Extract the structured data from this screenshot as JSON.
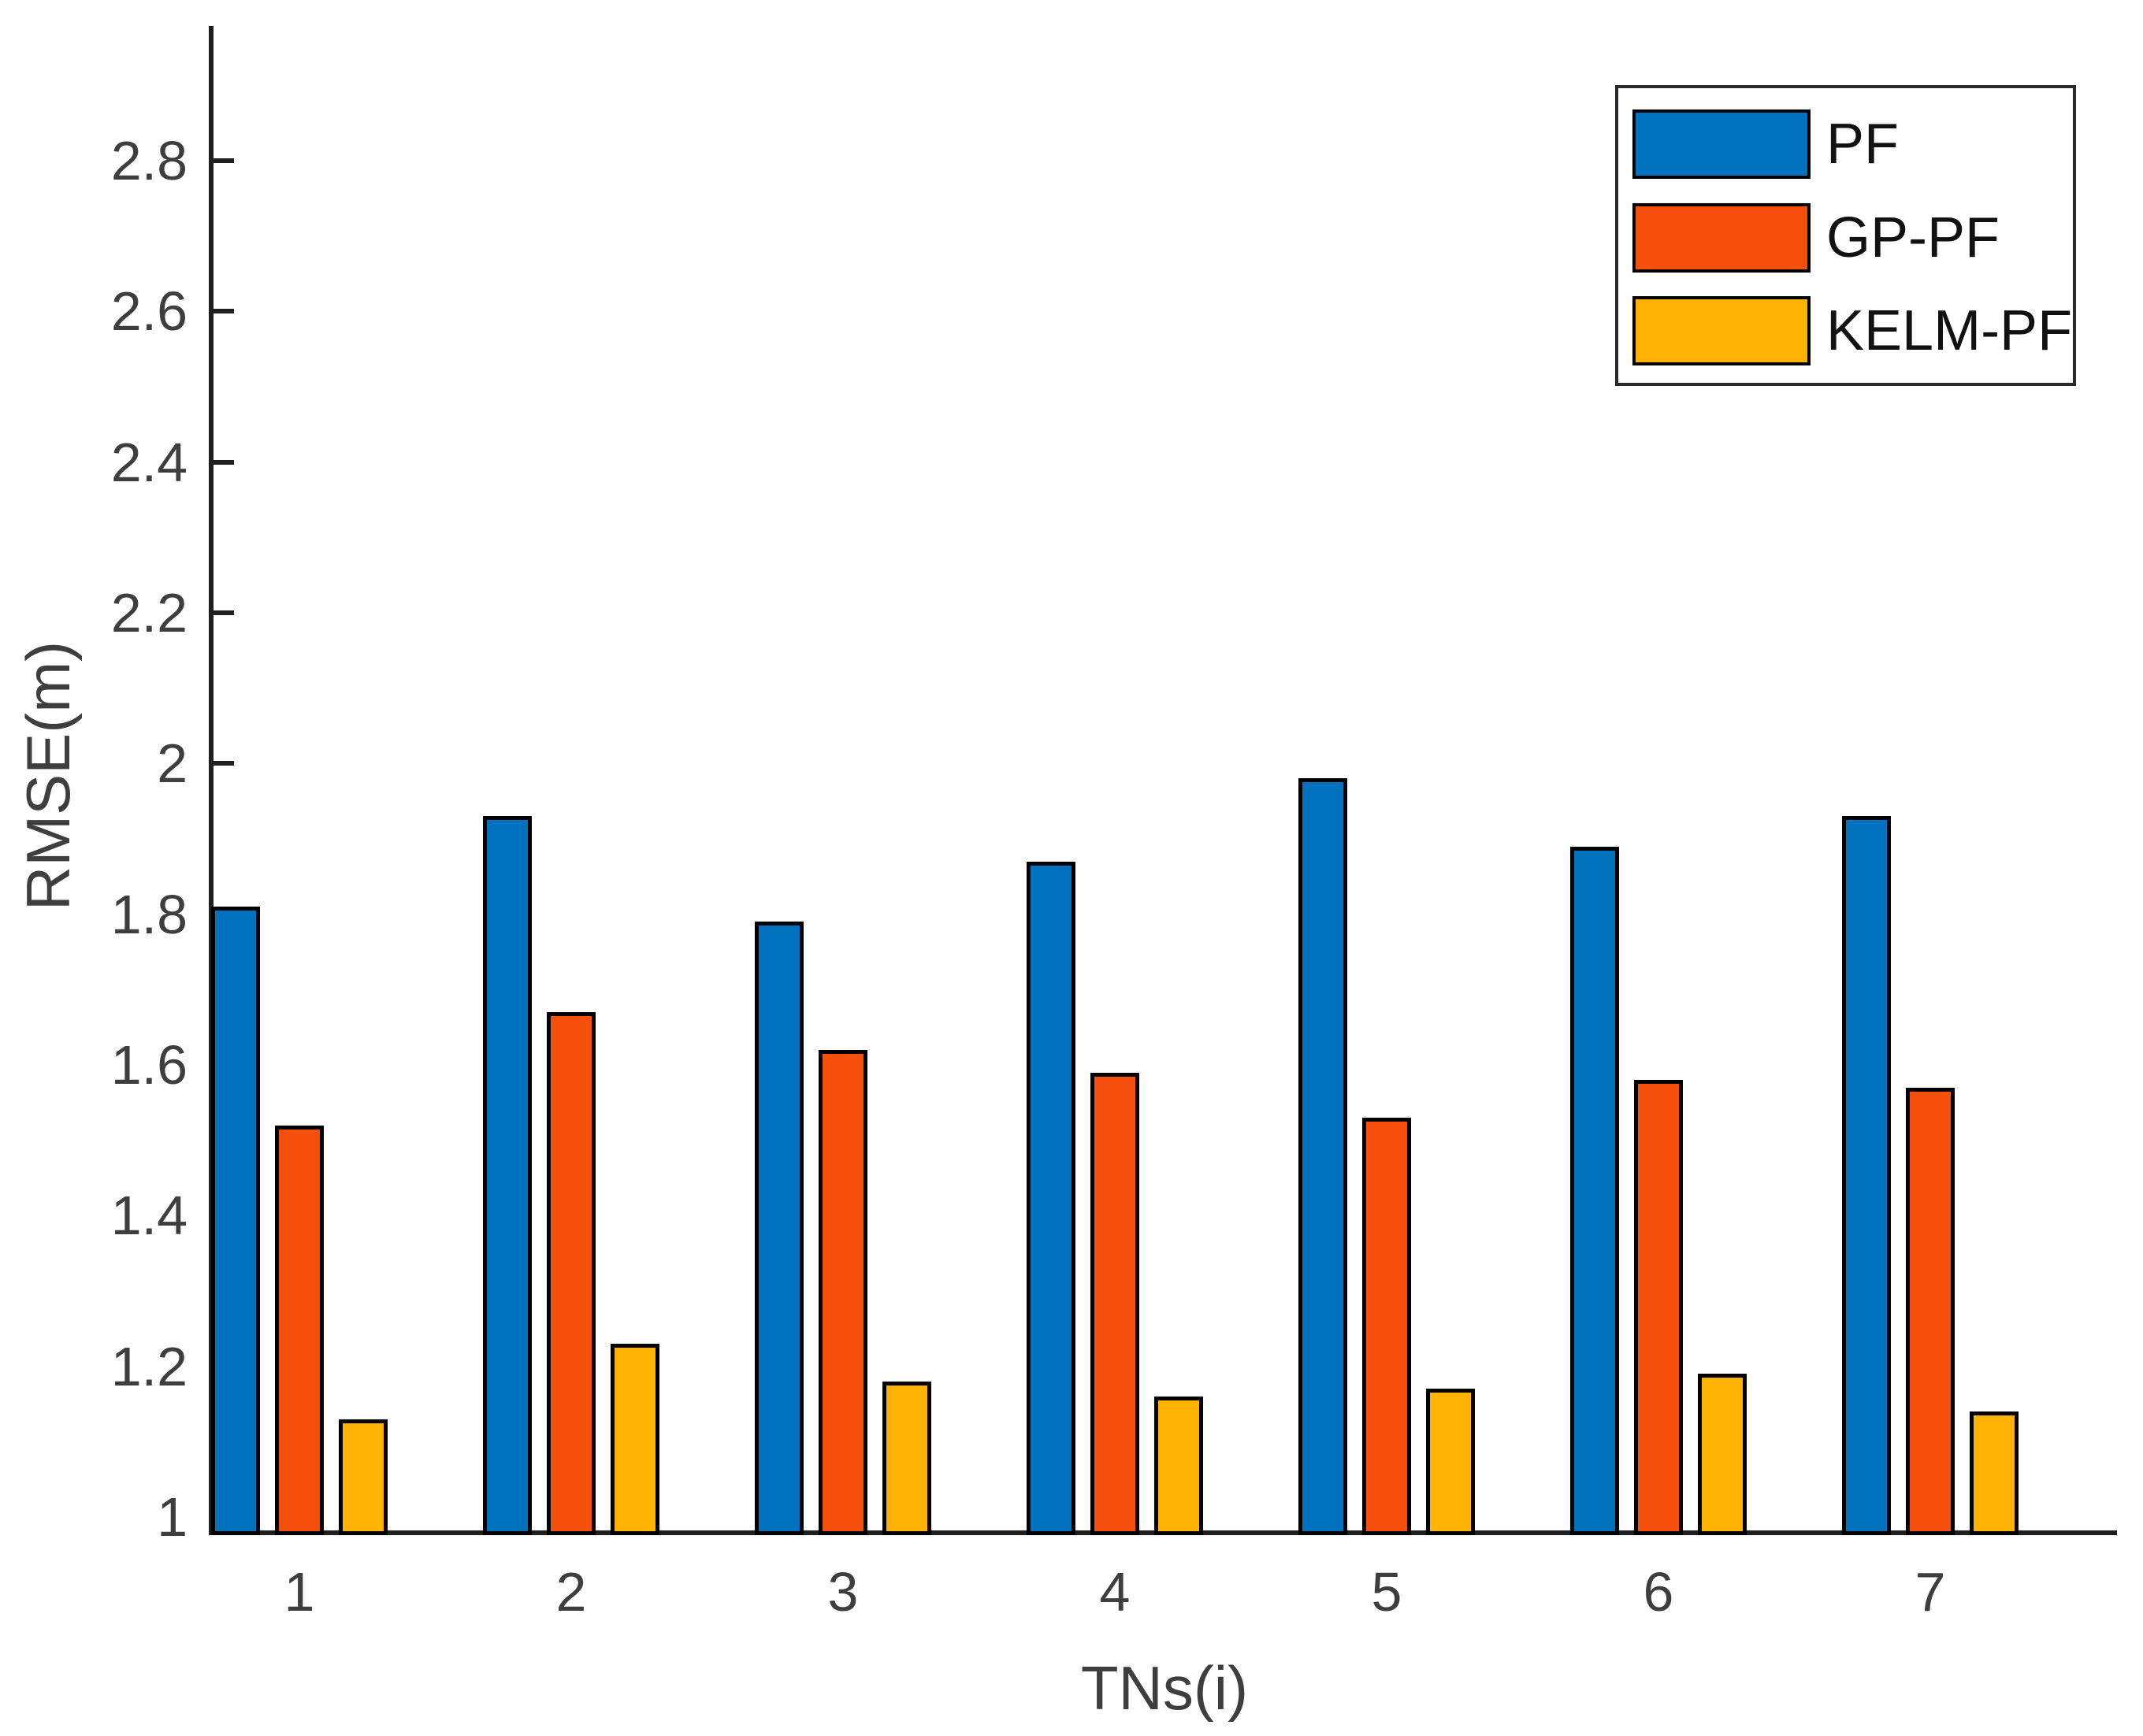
{
  "chart_data": {
    "type": "bar",
    "title": "",
    "xlabel": "TNs(i)",
    "ylabel": "RMSE(m)",
    "categories": [
      "1",
      "2",
      "3",
      "4",
      "5",
      "6",
      "7"
    ],
    "series": [
      {
        "name": "PF",
        "color": "#0072BD",
        "values": [
          1.81,
          1.93,
          1.79,
          1.87,
          1.98,
          1.89,
          1.93
        ]
      },
      {
        "name": "GP-PF",
        "color": "#F4500C",
        "values": [
          1.52,
          1.67,
          1.62,
          1.59,
          1.53,
          1.58,
          1.57
        ]
      },
      {
        "name": "KELM-PF",
        "color": "#FEB204",
        "values": [
          1.13,
          1.23,
          1.18,
          1.16,
          1.17,
          1.19,
          1.14
        ]
      }
    ],
    "ylim": [
      0.98,
      2.98
    ],
    "yticks": [
      "1",
      "1.2",
      "1.4",
      "1.6",
      "1.8",
      "2",
      "2.2",
      "2.4",
      "2.6",
      "2.8"
    ],
    "ytick_values": [
      1,
      1.2,
      1.4,
      1.6,
      1.8,
      2,
      2.2,
      2.4,
      2.6,
      2.8
    ],
    "grid": false,
    "legend_position": "top-right",
    "bar_edge_color": "#000000",
    "axis_color": "#1f1f1f",
    "label_color": "#3e3e3e"
  }
}
